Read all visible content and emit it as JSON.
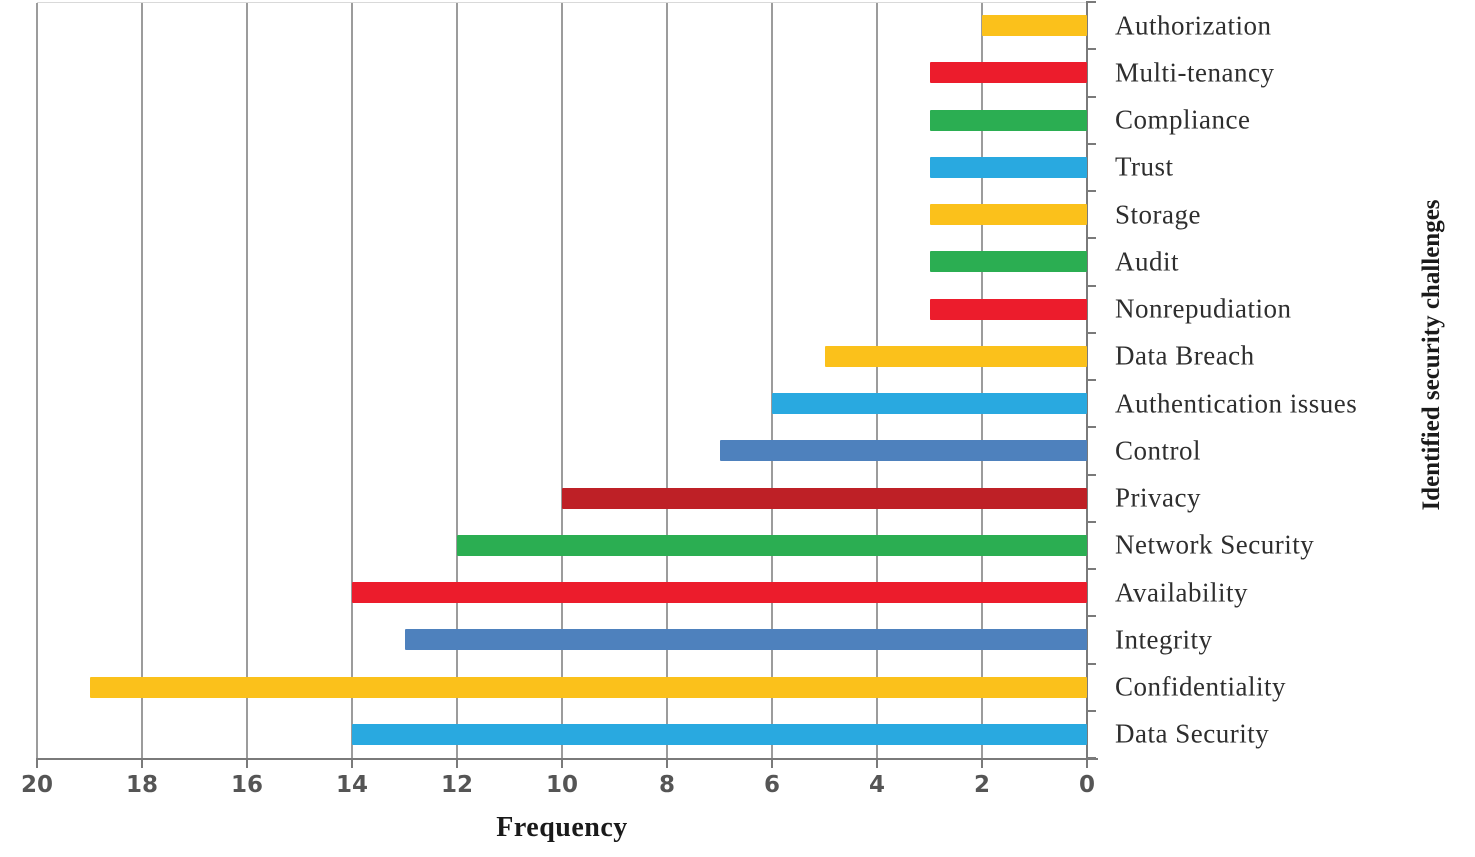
{
  "chart_data": {
    "type": "bar",
    "orientation": "horizontal",
    "title": "",
    "xlabel": "Frequency",
    "ylabel": "Identified security challenges",
    "grid": true,
    "legend": "none",
    "background": "#ffffff",
    "x_axis": {
      "min": 0,
      "max": 20,
      "tick_step": 2,
      "reversed": true,
      "tick_labels": [
        "20",
        "18",
        "16",
        "14",
        "12",
        "10",
        "8",
        "6",
        "4",
        "2",
        "0"
      ]
    },
    "palette": {
      "yellow": "#FBC11B",
      "red": "#EC1C2C",
      "green": "#2BAE52",
      "sky_blue": "#29A9E0",
      "steel_blue": "#4E81BD",
      "dark_red": "#BE2026"
    },
    "categories": [
      "Authorization",
      "Multi-tenancy",
      "Compliance",
      "Trust",
      "Storage",
      "Audit",
      "Nonrepudiation",
      "Data Breach",
      "Authentication issues",
      "Control",
      "Privacy",
      "Network Security",
      "Availability",
      "Integrity",
      "Confidentiality",
      "Data Security"
    ],
    "values": [
      2,
      3,
      3,
      3,
      3,
      3,
      3,
      5,
      6,
      7,
      10,
      12,
      14,
      13,
      19,
      14
    ],
    "colors": [
      "#FBC11B",
      "#EC1C2C",
      "#2BAE52",
      "#29A9E0",
      "#FBC11B",
      "#2BAE52",
      "#EC1C2C",
      "#FBC11B",
      "#29A9E0",
      "#4E81BD",
      "#BE2026",
      "#2BAE52",
      "#EC1C2C",
      "#4E81BD",
      "#FBC11B",
      "#29A9E0"
    ]
  }
}
